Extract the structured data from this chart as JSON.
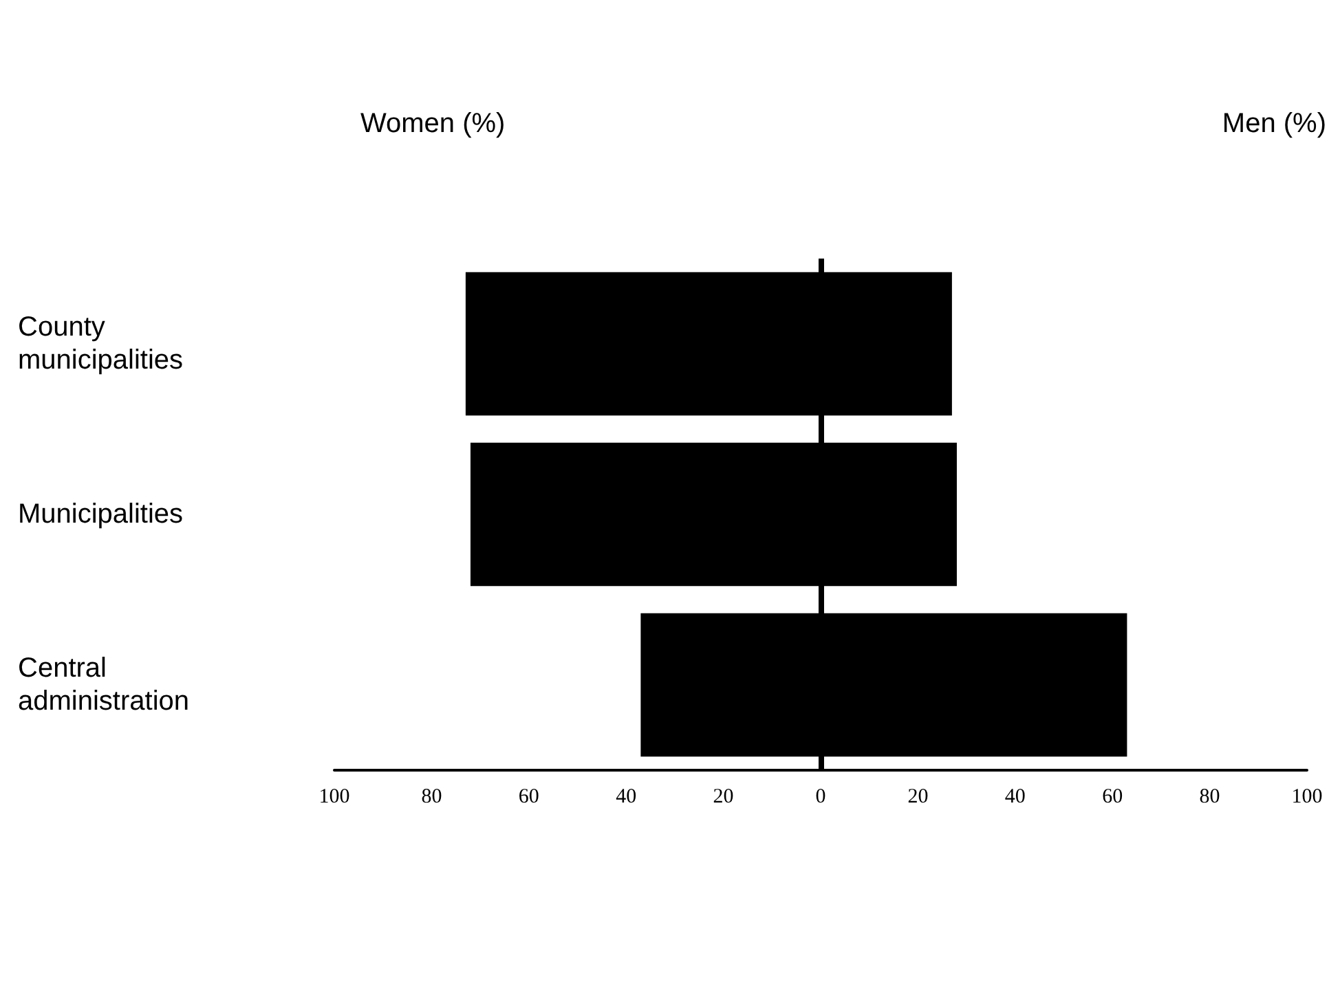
{
  "chart_data": {
    "type": "bar",
    "orientation": "horizontal",
    "categories": [
      "County\nmunicipalities",
      "Municipalities",
      "Central\nadministration"
    ],
    "base": [
      -73,
      -72,
      -37
    ],
    "values": [
      100,
      100,
      100
    ],
    "color": "#000000",
    "xlim": [
      -100,
      100
    ],
    "xticks": [
      {
        "value": -100,
        "label": "100"
      },
      {
        "value": -80,
        "label": "80"
      },
      {
        "value": -60,
        "label": "60"
      },
      {
        "value": -40,
        "label": "40"
      },
      {
        "value": -20,
        "label": "20"
      },
      0,
      20,
      40,
      60,
      80,
      100
    ],
    "annotations": [
      "Women (%)",
      "Men (%)"
    ],
    "ref_lines": [
      {
        "axis": "x",
        "value": 0,
        "color": "#000000"
      }
    ]
  }
}
